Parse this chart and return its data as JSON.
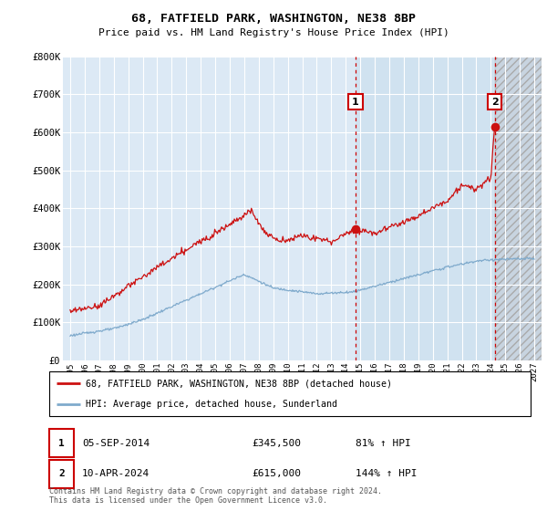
{
  "title": "68, FATFIELD PARK, WASHINGTON, NE38 8BP",
  "subtitle": "Price paid vs. HM Land Registry's House Price Index (HPI)",
  "ylim": [
    0,
    800000
  ],
  "yticks": [
    0,
    100000,
    200000,
    300000,
    400000,
    500000,
    600000,
    700000,
    800000
  ],
  "xlim_start": 1994.5,
  "xlim_end": 2027.5,
  "xticks": [
    1995,
    1996,
    1997,
    1998,
    1999,
    2000,
    2001,
    2002,
    2003,
    2004,
    2005,
    2006,
    2007,
    2008,
    2009,
    2010,
    2011,
    2012,
    2013,
    2014,
    2015,
    2016,
    2017,
    2018,
    2019,
    2020,
    2021,
    2022,
    2023,
    2024,
    2025,
    2026,
    2027
  ],
  "hpi_color": "#7faacc",
  "price_color": "#cc1111",
  "marker1_date": 2014.67,
  "marker1_price": 345500,
  "marker2_date": 2024.27,
  "marker2_price": 615000,
  "shade_start": 2014.67,
  "hatch_start": 2024.27,
  "legend_line1": "68, FATFIELD PARK, WASHINGTON, NE38 8BP (detached house)",
  "legend_line2": "HPI: Average price, detached house, Sunderland",
  "table_row1": [
    "1",
    "05-SEP-2014",
    "£345,500",
    "81% ↑ HPI"
  ],
  "table_row2": [
    "2",
    "10-APR-2024",
    "£615,000",
    "144% ↑ HPI"
  ],
  "footer": "Contains HM Land Registry data © Crown copyright and database right 2024.\nThis data is licensed under the Open Government Licence v3.0.",
  "background_chart": "#dce9f5",
  "background_shaded": "#d0e2f0",
  "grid_color": "#ffffff",
  "hatch_bg": "#c8d4e0"
}
